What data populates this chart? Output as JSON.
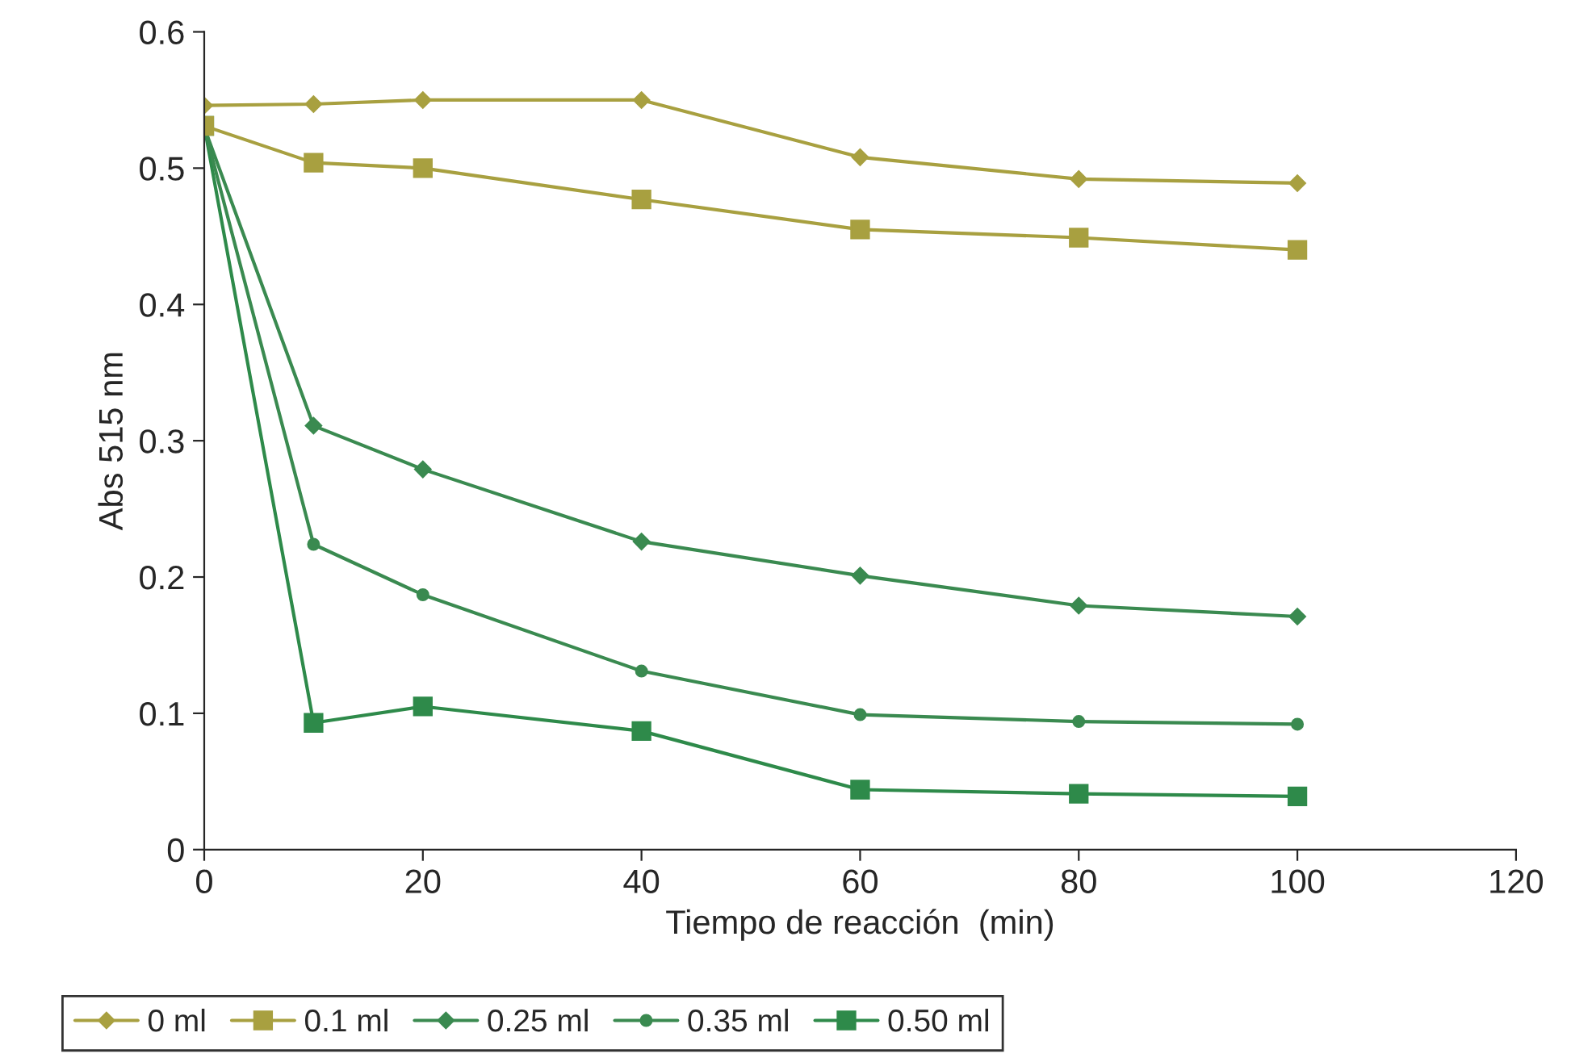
{
  "chart_data": {
    "type": "line",
    "xlabel": "Tiempo de reacción  (min)",
    "ylabel": "Abs 515 nm",
    "x": [
      0,
      10,
      20,
      40,
      60,
      80,
      100
    ],
    "xlim": [
      0,
      120
    ],
    "xticks": [
      0,
      20,
      40,
      60,
      80,
      100,
      120
    ],
    "ylim": [
      0,
      0.6
    ],
    "yticks": [
      0,
      0.1,
      0.2,
      0.3,
      0.4,
      0.5,
      0.6
    ],
    "grid": false,
    "legend": "bottom",
    "series": [
      {
        "name": "0 ml",
        "color": "#a8a040",
        "marker": "diamond",
        "values": [
          0.546,
          0.547,
          0.55,
          0.55,
          0.508,
          0.492,
          0.489
        ]
      },
      {
        "name": "0.1 ml",
        "color": "#a8a040",
        "marker": "square",
        "values": [
          0.531,
          0.504,
          0.5,
          0.477,
          0.455,
          0.449,
          0.44
        ]
      },
      {
        "name": "0.25 ml",
        "color": "#3a8a50",
        "marker": "diamond",
        "values": [
          0.53,
          0.311,
          0.279,
          0.226,
          0.201,
          0.179,
          0.171
        ]
      },
      {
        "name": "0.35 ml",
        "color": "#3a8a50",
        "marker": "circle",
        "values": [
          0.53,
          0.224,
          0.187,
          0.131,
          0.099,
          0.094,
          0.092
        ]
      },
      {
        "name": "0.50 ml",
        "color": "#2e8a4a",
        "marker": "square",
        "values": [
          0.531,
          0.093,
          0.105,
          0.087,
          0.044,
          0.041,
          0.039
        ]
      }
    ]
  }
}
